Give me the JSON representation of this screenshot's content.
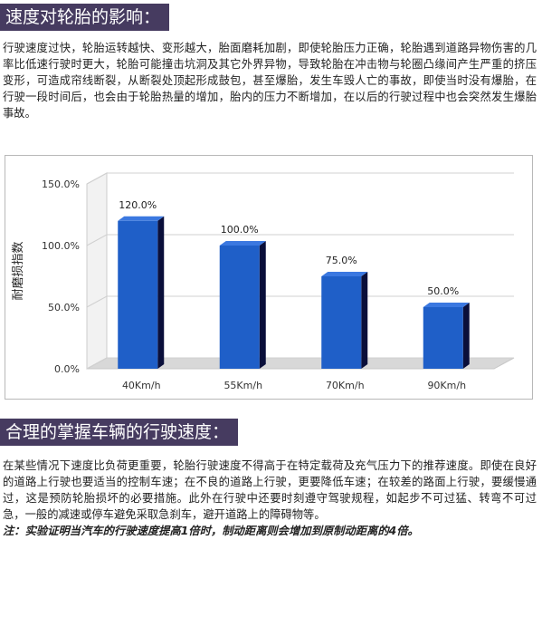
{
  "section1": {
    "title": "速度对轮胎的影响：",
    "paragraph": "行驶速度过快，轮胎运转越快、变形越大，胎面磨耗加剧，即使轮胎压力正确，轮胎遇到道路异物伤害的几率比低速行驶时更大，轮胎可能撞击坑洞及其它外界异物，导致轮胎在冲击物与轮圈凸缘间产生严重的挤压变形，可造成帘线断裂，从断裂处顶起形成鼓包，甚至爆胎，发生车毁人亡的事故，即使当时没有爆胎，在行驶一段时间后，也会由于轮胎热量的增加，胎内的压力不断增加，在以后的行驶过程中也会突然发生爆胎事故。"
  },
  "section2": {
    "title": "合理的掌握车辆的行驶速度：",
    "paragraph": "在某些情况下速度比负荷更重要，轮胎行驶速度不得高于在特定载荷及充气压力下的推荐速度。即使在良好的道路上行驶也要适当的控制车速；在不良的道路上行驶，更要降低车速；在较差的路面上行驶，要缓慢通过，这是预防轮胎损坏的必要措施。此外在行驶中还要时刻遵守驾驶规程，如起步不可过猛、转弯不可过急，一般的减速或停车避免采取急刹车，避开道路上的障碍物等。",
    "note": "注：实验证明当汽车的行驶速度提高1倍时，制动距离则会增加到原制动距离的4倍。"
  },
  "chart_data": {
    "type": "bar",
    "categories": [
      "40Km/h",
      "55Km/h",
      "70Km/h",
      "90Km/h"
    ],
    "values": [
      120.0,
      100.0,
      75.0,
      50.0
    ],
    "data_labels": [
      "120.0%",
      "100.0%",
      "75.0%",
      "50.0%"
    ],
    "ylabel": "耐磨损指数",
    "ylim": [
      0,
      150
    ],
    "yticks": [
      0,
      50,
      100,
      150
    ],
    "ytick_labels": [
      "0.0%",
      "50.0%",
      "100.0%",
      "150.0%"
    ],
    "bar_color": "#1f5fc8",
    "bar_side_color": "#0a0f3a",
    "grid": false,
    "legend": false
  }
}
